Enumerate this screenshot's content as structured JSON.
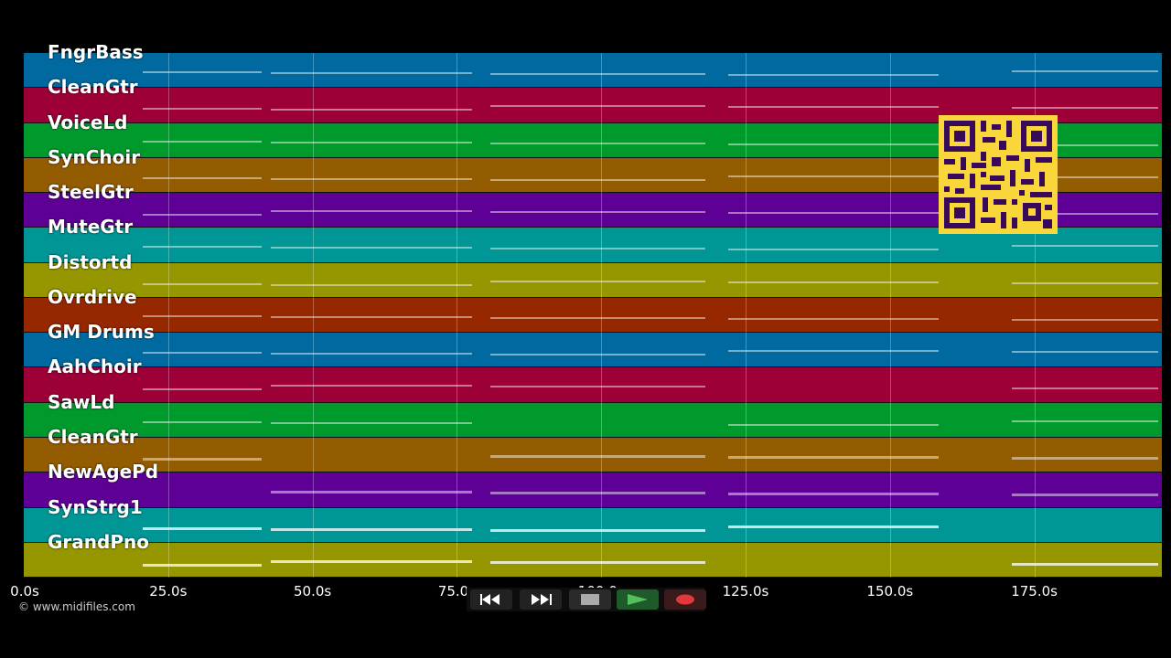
{
  "tracks": [
    {
      "name": "FngrBass",
      "color": "#006aa0"
    },
    {
      "name": "CleanGtr",
      "color": "#9c0036"
    },
    {
      "name": "VoiceLd",
      "color": "#009a2c"
    },
    {
      "name": "SynChoir",
      "color": "#945c00"
    },
    {
      "name": "SteelGtr",
      "color": "#5e0096"
    },
    {
      "name": "MuteGtr",
      "color": "#009696"
    },
    {
      "name": "Distortd",
      "color": "#969600"
    },
    {
      "name": "Ovrdrive",
      "color": "#962800"
    },
    {
      "name": "GM Drums",
      "color": "#006aa0"
    },
    {
      "name": "AahChoir",
      "color": "#9c0036"
    },
    {
      "name": "SawLd",
      "color": "#009a2c"
    },
    {
      "name": "CleanGtr",
      "color": "#945c00"
    },
    {
      "name": "NewAgePd",
      "color": "#5e0096"
    },
    {
      "name": "SynStrg1",
      "color": "#009696"
    },
    {
      "name": "GrandPno",
      "color": "#969600"
    }
  ],
  "timeline": {
    "ticks": [
      "0.0s",
      "25.0s",
      "50.0s",
      "75.0s",
      "100.0s",
      "125.0s",
      "150.0s",
      "175.0s"
    ]
  },
  "footer": {
    "copyright": "© www.midifiles.com"
  },
  "transport": {
    "rewind_icon": "rewind-icon",
    "fast_forward_icon": "fast-forward-icon",
    "stop_icon": "stop-icon",
    "play_icon": "play-icon",
    "record_icon": "record-icon"
  }
}
